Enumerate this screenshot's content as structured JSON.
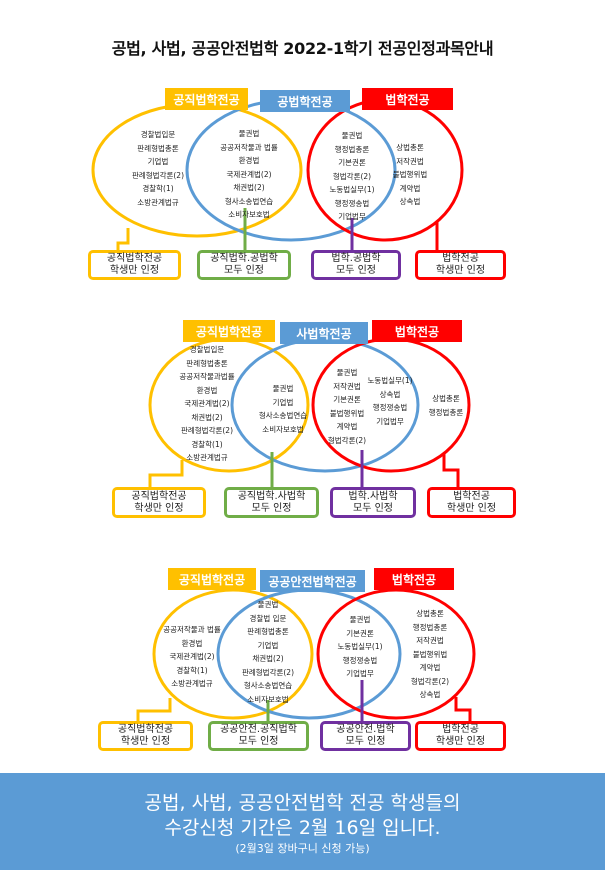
{
  "title": "공법, 사법, 공공안전법학 2022-1학기 전공인정과목안내",
  "colors": {
    "yellow": "#ffc000",
    "blue": "#5b9bd5",
    "red": "#ff0000",
    "green": "#70ad47",
    "purple": "#7030a0"
  },
  "sections": [
    {
      "labels": {
        "left": "공직법학전공",
        "middle": "공법학전공",
        "right": "법학전공"
      },
      "lists": {
        "left_only": [
          "경찰법입문",
          "판례형법총론",
          "기업법",
          "판례형법각론(2)",
          "경찰학(1)",
          "소방관계법규"
        ],
        "left_middle": [
          "물권법",
          "공공저작물과 법률",
          "환경법",
          "국제관계법(2)",
          "채권법(2)",
          "형사소송법연습",
          "소비자보호법"
        ],
        "middle_right": [
          "물권법",
          "행정법총론",
          "기본권론",
          "형법각론(2)",
          "노동법실무(1)",
          "행정쟁송법",
          "기업법무"
        ],
        "right_only": [
          "상법총론",
          "저작권법",
          "불법행위법",
          "계약법",
          "상속법"
        ]
      },
      "boxes": [
        {
          "line1": "공직법학전공",
          "line2": "학생만 인정"
        },
        {
          "line1": "공직법학.공법학",
          "line2": "모두 인정"
        },
        {
          "line1": "법학.공법학",
          "line2": "모두 인정"
        },
        {
          "line1": "법학전공",
          "line2": "학생만 인정"
        }
      ]
    },
    {
      "labels": {
        "left": "공직법학전공",
        "middle": "사법학전공",
        "right": "법학전공"
      },
      "lists": {
        "left_only": [
          "경찰법입문",
          "판례형법총론",
          "공공저작물과법률",
          "환경법",
          "국제관계법(2)",
          "채권법(2)",
          "판례형법각론(2)",
          "경찰학(1)",
          "소방관계법규"
        ],
        "left_middle": [
          "물권법",
          "기업법",
          "형사소송법연습",
          "소비자보호법"
        ],
        "middle_right": [
          "물권법",
          "저작권법",
          "기본권론",
          "불법행위법",
          "계약법",
          "형법각론(2)"
        ],
        "middle_right_b": [
          "노동법실무(1)",
          "상속법",
          "행정쟁송법",
          "기업법무"
        ],
        "right_only": [
          "상법총론",
          "행정법총론"
        ]
      },
      "boxes": [
        {
          "line1": "공직법학전공",
          "line2": "학생만 인정"
        },
        {
          "line1": "공직법학.사법학",
          "line2": "모두 인정"
        },
        {
          "line1": "법학.사법학",
          "line2": "모두 인정"
        },
        {
          "line1": "법학전공",
          "line2": "학생만 인정"
        }
      ]
    },
    {
      "labels": {
        "left": "공직법학전공",
        "middle": "공공안전법학전공",
        "right": "법학전공"
      },
      "lists": {
        "left_only": [
          "공공저작물과 법률",
          "환경법",
          "국제관계법(2)",
          "경찰학(1)",
          "소방관계법규"
        ],
        "left_middle": [
          "물권법",
          "경찰법 입문",
          "판례형법총론",
          "기업법",
          "채권법(2)",
          "판례형법각론(2)",
          "형사소송법연습",
          "소비자보호법"
        ],
        "middle_right": [
          "물권법",
          "기본권론",
          "노동법실무(1)",
          "행정쟁송법",
          "기업법무"
        ],
        "right_only": [
          "상법총론",
          "행정법총론",
          "저작권법",
          "불법행위법",
          "계약법",
          "형법각론(2)",
          "상속법"
        ]
      },
      "boxes": [
        {
          "line1": "공직법학전공",
          "line2": "학생만 인정"
        },
        {
          "line1": "공공안전.공직법학",
          "line2": "모두 인정"
        },
        {
          "line1": "공공안전.법학",
          "line2": "모두 인정"
        },
        {
          "line1": "법학전공",
          "line2": "학생만 인정"
        }
      ]
    }
  ],
  "footer": {
    "line1": "공법, 사법, 공공안전법학 전공 학생들의",
    "line2": "수강신청 기간은 2월 16일 입니다.",
    "line3": "(2월3일 장바구니 신청 가능)"
  }
}
